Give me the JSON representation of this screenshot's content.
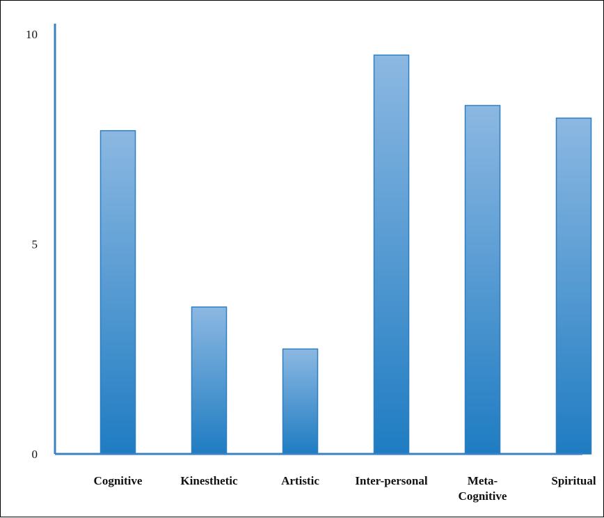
{
  "chart_data": {
    "type": "bar",
    "categories": [
      "Cognitive",
      "Kinesthetic",
      "Artistic",
      "Inter-personal",
      "Meta-Cognitive",
      "Spiritual"
    ],
    "category_lines": [
      [
        "Cognitive"
      ],
      [
        "Kinesthetic"
      ],
      [
        "Artistic"
      ],
      [
        "Inter-personal"
      ],
      [
        "Meta-",
        "Cognitive"
      ],
      [
        "Spiritual"
      ]
    ],
    "values": [
      7.7,
      3.5,
      2.5,
      9.5,
      8.3,
      8.0
    ],
    "title": "",
    "xlabel": "",
    "ylabel": "",
    "ylim": [
      0,
      10
    ],
    "yticks": [
      "0",
      "5",
      "10"
    ],
    "grid": false,
    "legend": "none",
    "colors": {
      "bar_top": "#8cb8e2",
      "bar_bottom": "#1f7cc2",
      "bar_stroke": "#2e7fc0",
      "axis": "#3a80c3"
    }
  }
}
